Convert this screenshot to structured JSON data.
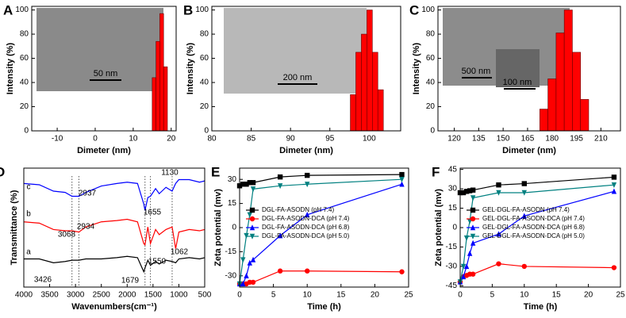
{
  "chart_data": [
    {
      "type": "histogram",
      "title": "A",
      "x_label": "Dimeter (nm)",
      "y_label": "Intensity (%)",
      "bins": [
        15,
        16,
        17,
        18,
        19
      ],
      "values": [
        44,
        74,
        97,
        53
      ],
      "color": "#ff0000",
      "xlim": [
        -16.7,
        21.3
      ],
      "xticks": [
        -10,
        0,
        10,
        20
      ],
      "ylim": [
        0,
        103
      ],
      "yticks": [
        0,
        20,
        40,
        60,
        80,
        100
      ],
      "inset_labels": [
        "50 nm"
      ]
    },
    {
      "type": "histogram",
      "title": "B",
      "x_label": "Dimeter (nm)",
      "y_label": "Intensity (%)",
      "bins": [
        97.6,
        98.3,
        99,
        99.7,
        100.4,
        101.1,
        101.8
      ],
      "values": [
        30,
        65,
        80,
        100,
        65,
        34
      ],
      "color": "#ff0000",
      "xlim": [
        80,
        104
      ],
      "xticks": [
        80,
        85,
        90,
        95,
        100
      ],
      "ylim": [
        0,
        103
      ],
      "yticks": [
        0,
        20,
        40,
        60,
        80,
        100
      ],
      "inset_labels": [
        "200 nm"
      ]
    },
    {
      "type": "histogram",
      "title": "C",
      "x_label": "Dimeter (nm)",
      "y_label": "Intensity (%)",
      "bins": [
        172.5,
        177.5,
        182.5,
        187.5,
        192.5,
        197.5,
        202.5
      ],
      "values": [
        18,
        43,
        81,
        100,
        65,
        26
      ],
      "color": "#ff0000",
      "xlim": [
        110,
        222
      ],
      "xticks": [
        120,
        135,
        150,
        165,
        180,
        195,
        210
      ],
      "ylim": [
        0,
        103
      ],
      "yticks": [
        0,
        20,
        40,
        60,
        80,
        100
      ],
      "inset_labels": [
        "500 nm",
        "100 nm"
      ]
    },
    {
      "type": "line",
      "title": "D",
      "x_label": "Wavenumbers(cm⁻¹)",
      "y_label": "Transmittance (%)",
      "x": [
        4000,
        3700,
        3426,
        3200,
        3068,
        2934,
        2800,
        2500,
        2200,
        2000,
        1800,
        1679,
        1655,
        1600,
        1550,
        1450,
        1380,
        1250,
        1130,
        1062,
        1000,
        800,
        600,
        500
      ],
      "series": [
        {
          "color": "#0000ff",
          "values": [
            8.6,
            8.5,
            8.0,
            7.9,
            7.6,
            7.6,
            7.9,
            8.4,
            8.6,
            8.7,
            8.6,
            7.0,
            6.5,
            7.5,
            7.6,
            8.2,
            7.8,
            8.3,
            8.0,
            8.6,
            8.9,
            8.9,
            8.7,
            8.8
          ]
        },
        {
          "color": "#ff0000",
          "values": [
            5.6,
            5.5,
            5.0,
            4.9,
            4.9,
            4.8,
            5.2,
            5.6,
            5.7,
            5.8,
            5.6,
            3.9,
            3.8,
            5.2,
            3.9,
            5.0,
            4.6,
            5.0,
            5.2,
            3.5,
            4.8,
            5.0,
            4.9,
            5.0
          ]
        },
        {
          "color": "#000000",
          "values": [
            2.7,
            2.7,
            2.4,
            2.5,
            2.6,
            2.6,
            2.7,
            2.7,
            2.8,
            2.9,
            2.8,
            1.7,
            2.0,
            2.6,
            2.2,
            2.5,
            2.3,
            2.6,
            2.5,
            2.4,
            2.7,
            2.8,
            2.7,
            2.8
          ]
        }
      ],
      "xlim": [
        4000,
        500
      ],
      "xticks": [
        4000,
        3500,
        3000,
        2500,
        2000,
        1500,
        1000,
        500
      ],
      "ylim": [
        0.5,
        9.8
      ],
      "annotations": [
        "c",
        "b",
        "a",
        "3068",
        "2934",
        "2937",
        "3426",
        "1655",
        "1679",
        "1550",
        "1130",
        "1062"
      ]
    },
    {
      "type": "line",
      "title": "E",
      "x_label": "Time (h)",
      "y_label": "Zeta potential (mv)",
      "legend": "center-left",
      "x": [
        0,
        0.5,
        1,
        1.5,
        2,
        6,
        10,
        24
      ],
      "series": [
        {
          "name": "DGL-FA-ASODN (pH 7.4)",
          "color": "#000000",
          "marker": "square",
          "values": [
            26,
            27,
            27,
            28,
            28,
            31.5,
            32.5,
            33
          ]
        },
        {
          "name": "DGL-FA-ASODN-DCA (pH 7.4)",
          "color": "#ff0000",
          "marker": "circle",
          "values": [
            -35,
            -35,
            -35,
            -34,
            -34,
            -27,
            -27,
            -27.5
          ]
        },
        {
          "name": "DGL-FA-ASODN-DCA (pH 6.8)",
          "color": "#0000ff",
          "marker": "triangle",
          "values": [
            -35,
            -35,
            -30,
            -22,
            -20,
            -5,
            8,
            27
          ]
        },
        {
          "name": "DGL-FA-ASODN-DCA (pH 5.0)",
          "color": "#008080",
          "marker": "down-triangle",
          "values": [
            -35,
            -20,
            -5,
            8,
            24,
            26,
            27,
            30
          ]
        }
      ],
      "xlim": [
        0,
        25
      ],
      "xticks": [
        0,
        5,
        10,
        15,
        20,
        25
      ],
      "ylim": [
        -37,
        37
      ],
      "yticks": [
        -30,
        -15,
        0,
        15,
        30
      ]
    },
    {
      "type": "line",
      "title": "F",
      "x_label": "Time (h)",
      "y_label": "Zeta potential (mv)",
      "legend": "center-left",
      "x": [
        0,
        0.5,
        1,
        1.5,
        2,
        6,
        10,
        24
      ],
      "series": [
        {
          "name": "GEL-DGL-FA-ASODN (pH 7.4)",
          "color": "#000000",
          "marker": "square",
          "values": [
            27,
            27,
            28,
            28.5,
            29,
            33,
            34,
            39
          ]
        },
        {
          "name": "GEL-DGL-FA-ASODN-DCA (pH 7.4)",
          "color": "#ff0000",
          "marker": "circle",
          "values": [
            -42,
            -38,
            -37,
            -36,
            -36,
            -28,
            -30,
            -31
          ]
        },
        {
          "name": "GEL-DGL-FA-ASODN-DCA (pH 6.8)",
          "color": "#0000ff",
          "marker": "triangle",
          "values": [
            -42,
            -38,
            -30,
            -20,
            -12,
            -5,
            9,
            28
          ]
        },
        {
          "name": "GEL-DGL-FA-ASODN-DCA (pH 5.0)",
          "color": "#008080",
          "marker": "down-triangle",
          "values": [
            -42,
            -30,
            -8,
            5,
            23,
            27,
            27,
            33
          ]
        }
      ],
      "xlim": [
        0,
        25
      ],
      "xticks": [
        0,
        5,
        10,
        15,
        20,
        25
      ],
      "ylim": [
        -46,
        46
      ],
      "yticks": [
        -45,
        -30,
        -15,
        0,
        15,
        30,
        45
      ]
    }
  ]
}
